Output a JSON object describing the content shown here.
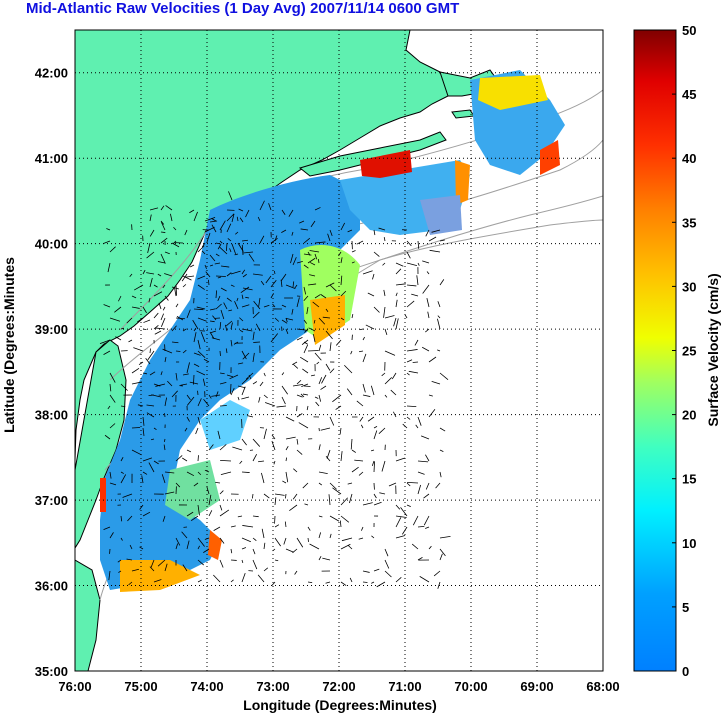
{
  "title": "Mid-Atlantic Raw Velocities (1 Day Avg) 2007/11/14 0600 GMT",
  "map": {
    "xlabel": "Longitude (Degrees:Minutes)",
    "ylabel": "Latitude (Degrees:Minutes",
    "x_ticks": [
      "76:00",
      "75:00",
      "74:00",
      "73:00",
      "72:00",
      "71:00",
      "70:00",
      "69:00",
      "68:00"
    ],
    "y_ticks": [
      "42:00",
      "41:00",
      "40:00",
      "39:00",
      "38:00",
      "37:00",
      "36:00",
      "35:00"
    ],
    "lon_range": [
      -76,
      -68
    ],
    "lat_range": [
      35,
      42.5
    ],
    "land_color": "#5ff0b0",
    "grid": "dotted"
  },
  "colorbar": {
    "label": "Surface Velocity (cm/s)",
    "ticks": [
      "50",
      "45",
      "40",
      "35",
      "30",
      "25",
      "20",
      "15",
      "10",
      "5",
      "0"
    ],
    "min": 0,
    "max": 50,
    "colormap": "jet"
  }
}
